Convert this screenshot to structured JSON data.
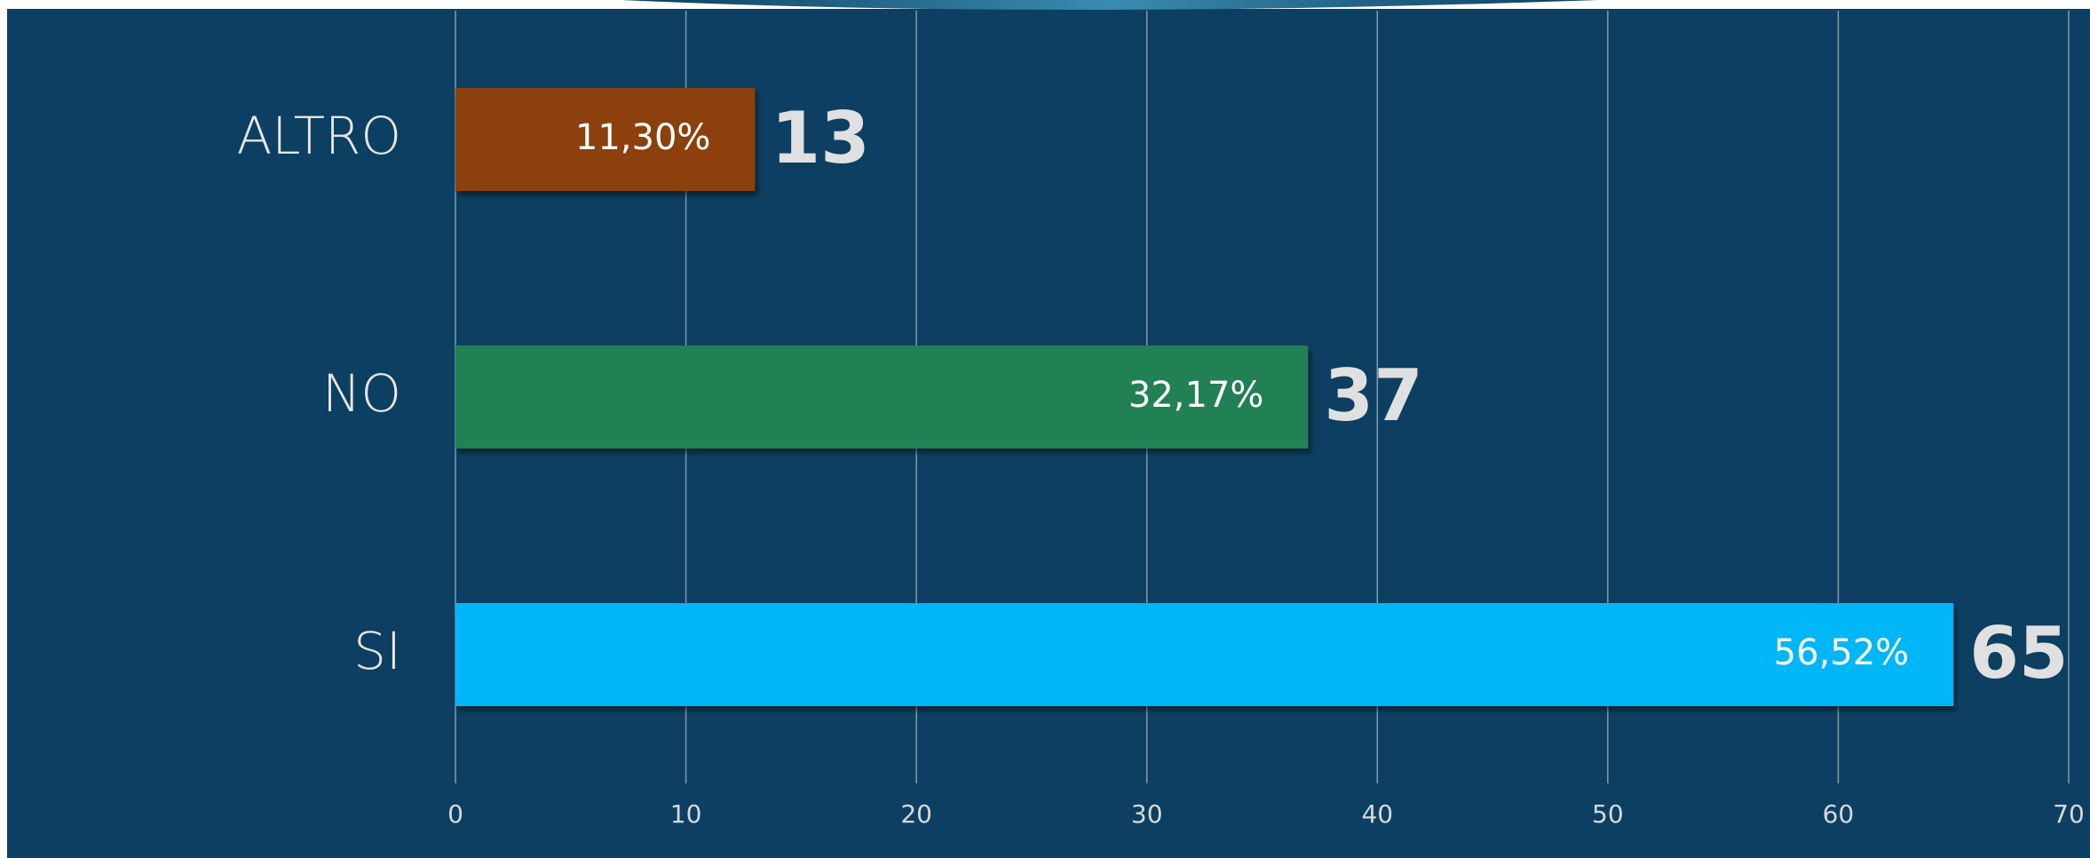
{
  "chart_data": {
    "type": "hbar",
    "categories": [
      "ALTRO",
      "NO",
      "SI"
    ],
    "values": [
      13,
      37,
      65
    ],
    "percent_labels": [
      "11,30%",
      "32,17%",
      "56,52%"
    ],
    "colors": [
      "#8b3f0c",
      "#238055",
      "#00b6f7"
    ],
    "xlim": [
      0,
      70
    ],
    "xticks": [
      0,
      10,
      20,
      30,
      40,
      50,
      60,
      70
    ],
    "grid": true
  }
}
